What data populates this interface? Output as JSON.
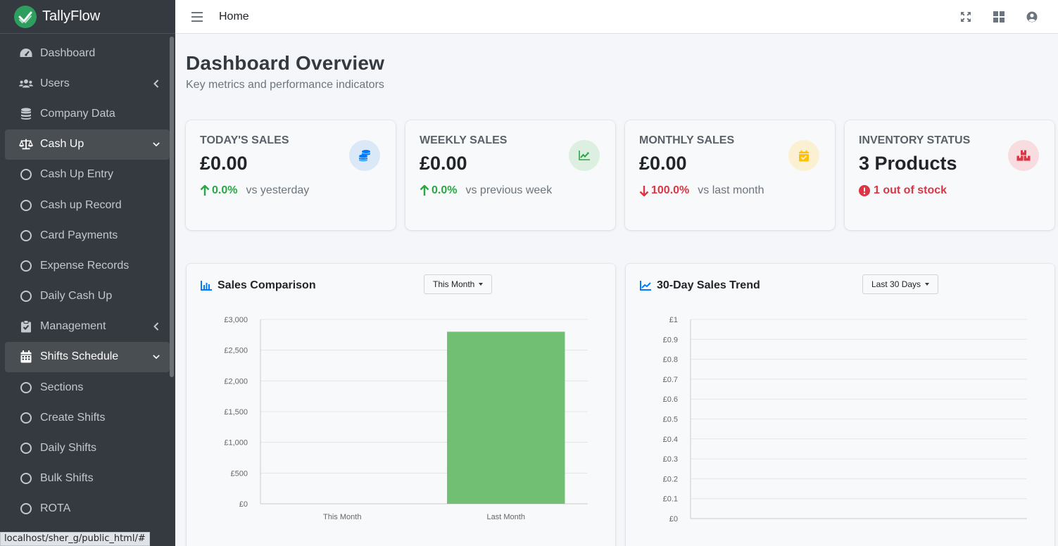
{
  "brand": {
    "name": "TallyFlow"
  },
  "sidebar": {
    "items": [
      {
        "label": "Dashboard",
        "icon": "tachometer-icon"
      },
      {
        "label": "Users",
        "icon": "users-icon",
        "arrow": "chevron-left-icon"
      },
      {
        "label": "Company Data",
        "icon": "database-icon"
      },
      {
        "label": "Cash Up",
        "icon": "balance-scale-icon",
        "arrow": "chevron-down-icon",
        "open": true
      },
      {
        "label": "Cash Up Entry",
        "icon": "circle-icon",
        "sub": true
      },
      {
        "label": "Cash up Record",
        "icon": "circle-icon",
        "sub": true
      },
      {
        "label": "Card Payments",
        "icon": "circle-icon",
        "sub": true
      },
      {
        "label": "Expense Records",
        "icon": "circle-icon",
        "sub": true
      },
      {
        "label": "Daily Cash Up",
        "icon": "circle-icon",
        "sub": true
      },
      {
        "label": "Management",
        "icon": "clipboard-check-icon",
        "arrow": "chevron-left-icon"
      },
      {
        "label": "Shifts Schedule",
        "icon": "calendar-icon",
        "arrow": "chevron-down-icon",
        "open": true
      },
      {
        "label": "Sections",
        "icon": "circle-icon",
        "sub": true
      },
      {
        "label": "Create Shifts",
        "icon": "circle-icon",
        "sub": true
      },
      {
        "label": "Daily Shifts",
        "icon": "circle-icon",
        "sub": true
      },
      {
        "label": "Bulk Shifts",
        "icon": "circle-icon",
        "sub": true
      },
      {
        "label": "ROTA",
        "icon": "circle-icon",
        "sub": true
      }
    ]
  },
  "topbar": {
    "home_label": "Home"
  },
  "page": {
    "title": "Dashboard Overview",
    "subtitle": "Key metrics and performance indicators"
  },
  "cards": [
    {
      "label": "TODAY'S SALES",
      "value": "£0.00",
      "change": "0.0%",
      "direction": "up",
      "compare": "vs yesterday",
      "icon": "coins-icon",
      "icon_color": "#007bff",
      "icon_bg": "#dbe8f8"
    },
    {
      "label": "WEEKLY SALES",
      "value": "£0.00",
      "change": "0.0%",
      "direction": "up",
      "compare": "vs previous week",
      "icon": "chart-line-icon",
      "icon_color": "#28a745",
      "icon_bg": "#dcefe1"
    },
    {
      "label": "MONTHLY SALES",
      "value": "£0.00",
      "change": "100.0%",
      "direction": "down",
      "compare": "vs last month",
      "icon": "calendar-check-icon",
      "icon_color": "#ffc107",
      "icon_bg": "#fbf1d2"
    },
    {
      "label": "INVENTORY STATUS",
      "value": "3 Products",
      "alert": "1 out of stock",
      "icon": "boxes-icon",
      "icon_color": "#dc3545",
      "icon_bg": "#f8dcdf"
    }
  ],
  "panels": {
    "comparison": {
      "title": "Sales Comparison",
      "dropdown": "This Month"
    },
    "trend": {
      "title": "30-Day Sales Trend",
      "dropdown": "Last 30 Days"
    }
  },
  "chart_data": [
    {
      "type": "bar",
      "title": "Sales Comparison",
      "categories": [
        "This Month",
        "Last Month"
      ],
      "values": [
        0,
        2800
      ],
      "ylim": [
        0,
        3000
      ],
      "yticks": [
        "£0",
        "£500",
        "£1,000",
        "£1,500",
        "£2,000",
        "£2,500",
        "£3,000"
      ],
      "bar_color": "#70bf73",
      "grid": true
    },
    {
      "type": "line",
      "title": "30-Day Sales Trend",
      "categories": [],
      "values": [],
      "ylim": [
        0,
        1
      ],
      "yticks": [
        "£0",
        "£0.1",
        "£0.2",
        "£0.3",
        "£0.4",
        "£0.5",
        "£0.6",
        "£0.7",
        "£0.8",
        "£0.9",
        "£1"
      ],
      "grid": true
    }
  ],
  "status_url": "localhost/sher_g/public_html/#"
}
